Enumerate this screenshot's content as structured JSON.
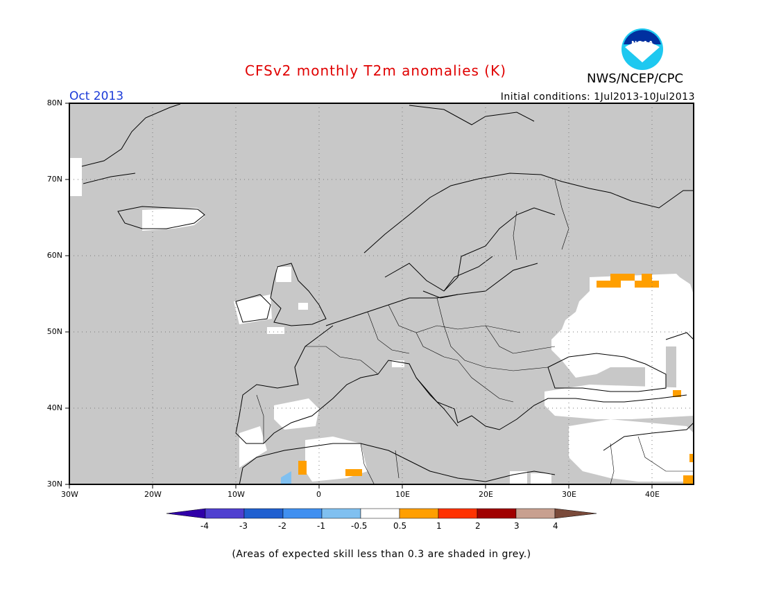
{
  "title": "CFSv2 monthly T2m anomalies (K)",
  "organization": "NWS/NCEP/CPC",
  "logo_text": "NOAA",
  "valid_month": "Oct 2013",
  "initial_conditions": "Initial conditions: 1Jul2013-10Jul2013",
  "footer": "(Areas of expected skill less than 0.3 are shaded in grey.)",
  "map": {
    "lon_range": [
      -30,
      45
    ],
    "lat_range": [
      30,
      80
    ],
    "lat_labels": [
      "80N",
      "70N",
      "60N",
      "50N",
      "40N",
      "30N"
    ],
    "lon_labels": [
      "30W",
      "20W",
      "10W",
      "0",
      "10E",
      "20E",
      "30E",
      "40E"
    ],
    "grid": true,
    "colors": {
      "ocean_land_grey": "#c8c8c8",
      "coast": "#000000",
      "grid": "#777777"
    }
  },
  "colorbar": {
    "labels": [
      "-4",
      "-3",
      "-2",
      "-1",
      "-0.5",
      "0.5",
      "1",
      "2",
      "3",
      "4"
    ],
    "colors": [
      "#3000a8",
      "#5040d0",
      "#2060d0",
      "#4090f0",
      "#80c0f0",
      "#ffffff",
      "#ff9f00",
      "#ff3200",
      "#a00000",
      "#c8a090",
      "#7a4a3a"
    ]
  },
  "colors": {
    "title": "#e00000",
    "month": "#1a3ad8"
  }
}
